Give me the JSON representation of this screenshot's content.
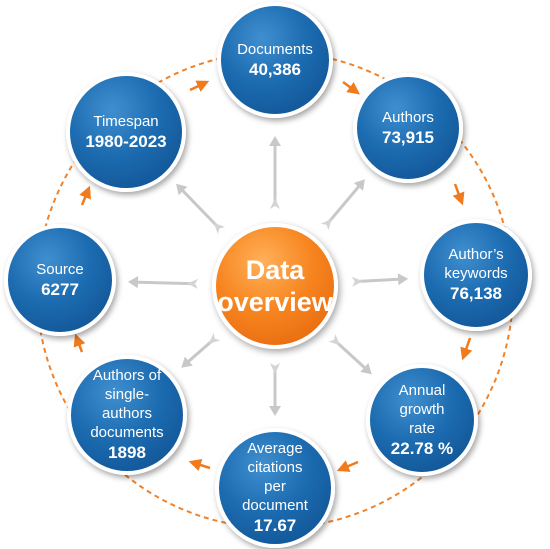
{
  "center": {
    "line1": "Data",
    "line2": "overview"
  },
  "nodes": [
    {
      "id": "documents",
      "label_lines": [
        "Documents"
      ],
      "value": "40,386"
    },
    {
      "id": "authors",
      "label_lines": [
        "Authors"
      ],
      "value": "73,915"
    },
    {
      "id": "authors-keywords",
      "label_lines": [
        "Author’s",
        "keywords"
      ],
      "value": "76,138"
    },
    {
      "id": "annual-growth-rate",
      "label_lines": [
        "Annual growth",
        "rate"
      ],
      "value": "22.78 %"
    },
    {
      "id": "average-citations",
      "label_lines": [
        "Average citations",
        "per",
        "document"
      ],
      "value": "17.67"
    },
    {
      "id": "single-author-documents",
      "label_lines": [
        "Authors of",
        "single-authors",
        "documents"
      ],
      "value": "1898"
    },
    {
      "id": "source",
      "label_lines": [
        "Source"
      ],
      "value": "6277"
    },
    {
      "id": "timespan",
      "label_lines": [
        "Timespan"
      ],
      "value": "1980-2023"
    }
  ],
  "colors": {
    "node_blue": "#1c6bb0",
    "center_orange": "#f7851f",
    "ring_dashes": "#f0822a",
    "ring_arrows": "#f07b1c",
    "spoke_arrows": "#c8c8c8"
  },
  "icons": {
    "ring_arrow": "orange-arrow-icon",
    "spoke_arrow": "gray-arrow-icon"
  }
}
